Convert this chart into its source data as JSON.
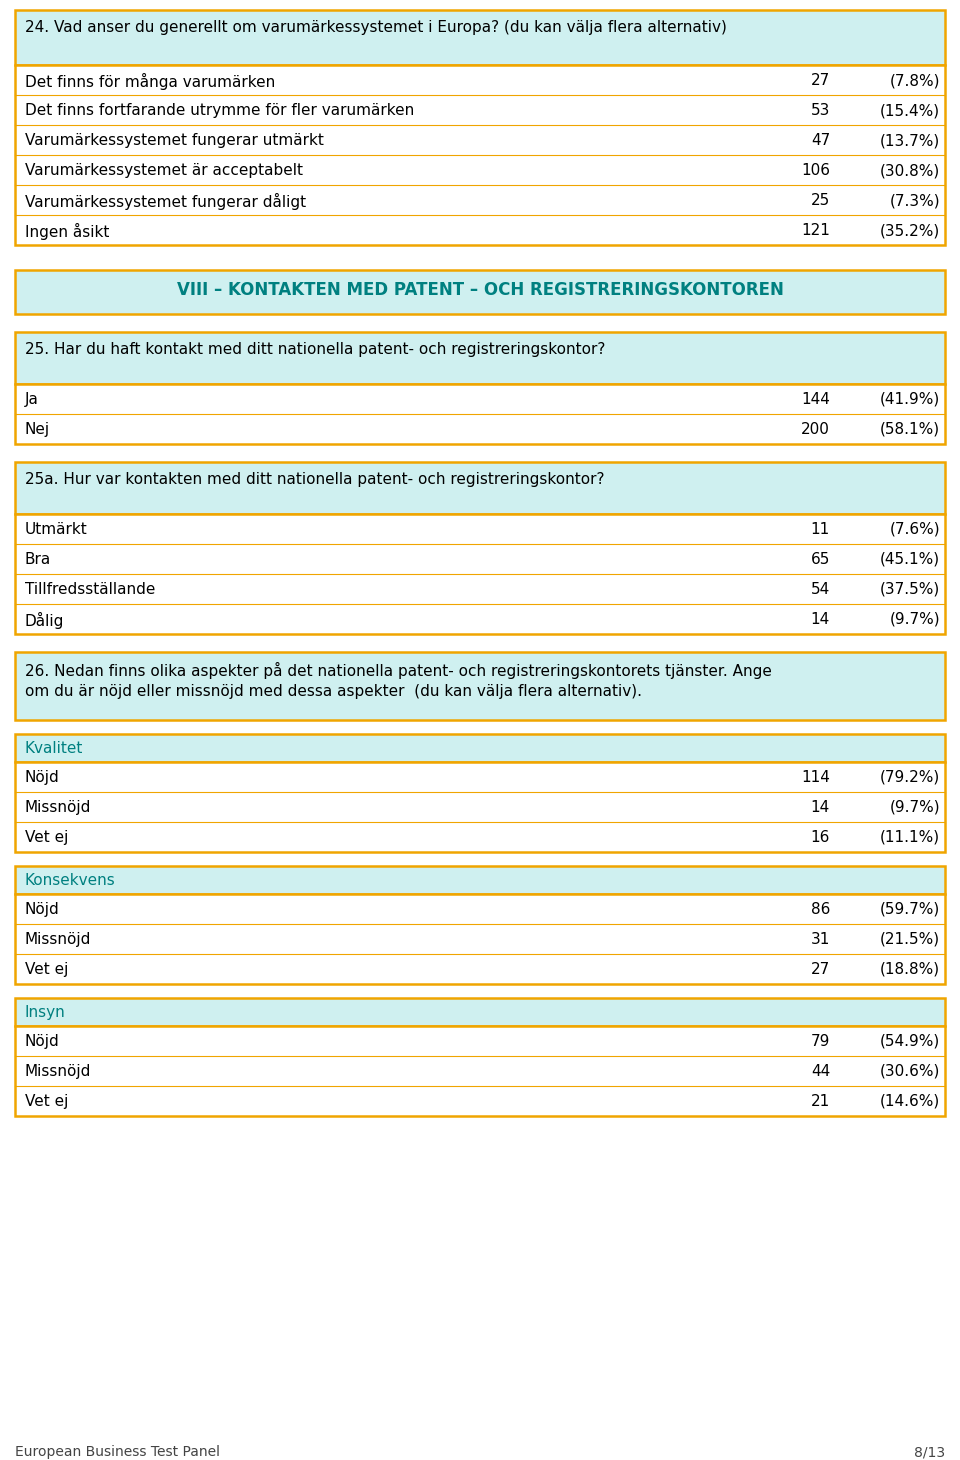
{
  "bg_color": "#ffffff",
  "box_bg": "#cff0f0",
  "box_border": "#f0a500",
  "text_color_black": "#000000",
  "text_color_teal": "#008080",
  "footer_text": "European Business Test Panel",
  "footer_page": "8/13",
  "q24_box_text": "24. Vad anser du generellt om varumärkessystemet i Europa? (du kan välja flera alternativ)",
  "q24_rows": [
    {
      "label": "Det finns för många varumärken",
      "n": "27",
      "pct": "(7.8%)"
    },
    {
      "label": "Det finns fortfarande utrymme för fler varumärken",
      "n": "53",
      "pct": "(15.4%)"
    },
    {
      "label": "Varumärkessystemet fungerar utmärkt",
      "n": "47",
      "pct": "(13.7%)"
    },
    {
      "label": "Varumärkessystemet är acceptabelt",
      "n": "106",
      "pct": "(30.8%)"
    },
    {
      "label": "Varumärkessystemet fungerar dåligt",
      "n": "25",
      "pct": "(7.3%)"
    },
    {
      "label": "Ingen åsikt",
      "n": "121",
      "pct": "(35.2%)"
    }
  ],
  "section8_header": "VIII – KONTAKTEN MED PATENT – OCH REGISTRERINGSKONTOREN",
  "q25_box_text": "25. Har du haft kontakt med ditt nationella patent- och registreringskontor?",
  "q25_rows": [
    {
      "label": "Ja",
      "n": "144",
      "pct": "(41.9%)"
    },
    {
      "label": "Nej",
      "n": "200",
      "pct": "(58.1%)"
    }
  ],
  "q25a_box_text": "25a. Hur var kontakten med ditt nationella patent- och registreringskontor?",
  "q25a_rows": [
    {
      "label": "Utmärkt",
      "n": "11",
      "pct": "(7.6%)"
    },
    {
      "label": "Bra",
      "n": "65",
      "pct": "(45.1%)"
    },
    {
      "label": "Tillfredsställande",
      "n": "54",
      "pct": "(37.5%)"
    },
    {
      "label": "Dålig",
      "n": "14",
      "pct": "(9.7%)"
    }
  ],
  "q26_box_line1": "26. Nedan finns olika aspekter på det nationella patent- och registreringskontorets tjänster. Ange",
  "q26_box_line2": "om du är nöjd eller missnöjd med dessa aspekter  (du kan välja flera alternativ).",
  "sub_sections": [
    {
      "header": "Kvalitet",
      "rows": [
        {
          "label": "Nöjd",
          "n": "114",
          "pct": "(79.2%)"
        },
        {
          "label": "Missnöjd",
          "n": "14",
          "pct": "(9.7%)"
        },
        {
          "label": "Vet ej",
          "n": "16",
          "pct": "(11.1%)"
        }
      ]
    },
    {
      "header": "Konsekvens",
      "rows": [
        {
          "label": "Nöjd",
          "n": "86",
          "pct": "(59.7%)"
        },
        {
          "label": "Missnöjd",
          "n": "31",
          "pct": "(21.5%)"
        },
        {
          "label": "Vet ej",
          "n": "27",
          "pct": "(18.8%)"
        }
      ]
    },
    {
      "header": "Insyn",
      "rows": [
        {
          "label": "Nöjd",
          "n": "79",
          "pct": "(54.9%)"
        },
        {
          "label": "Missnöjd",
          "n": "44",
          "pct": "(30.6%)"
        },
        {
          "label": "Vet ej",
          "n": "21",
          "pct": "(14.6%)"
        }
      ]
    }
  ]
}
